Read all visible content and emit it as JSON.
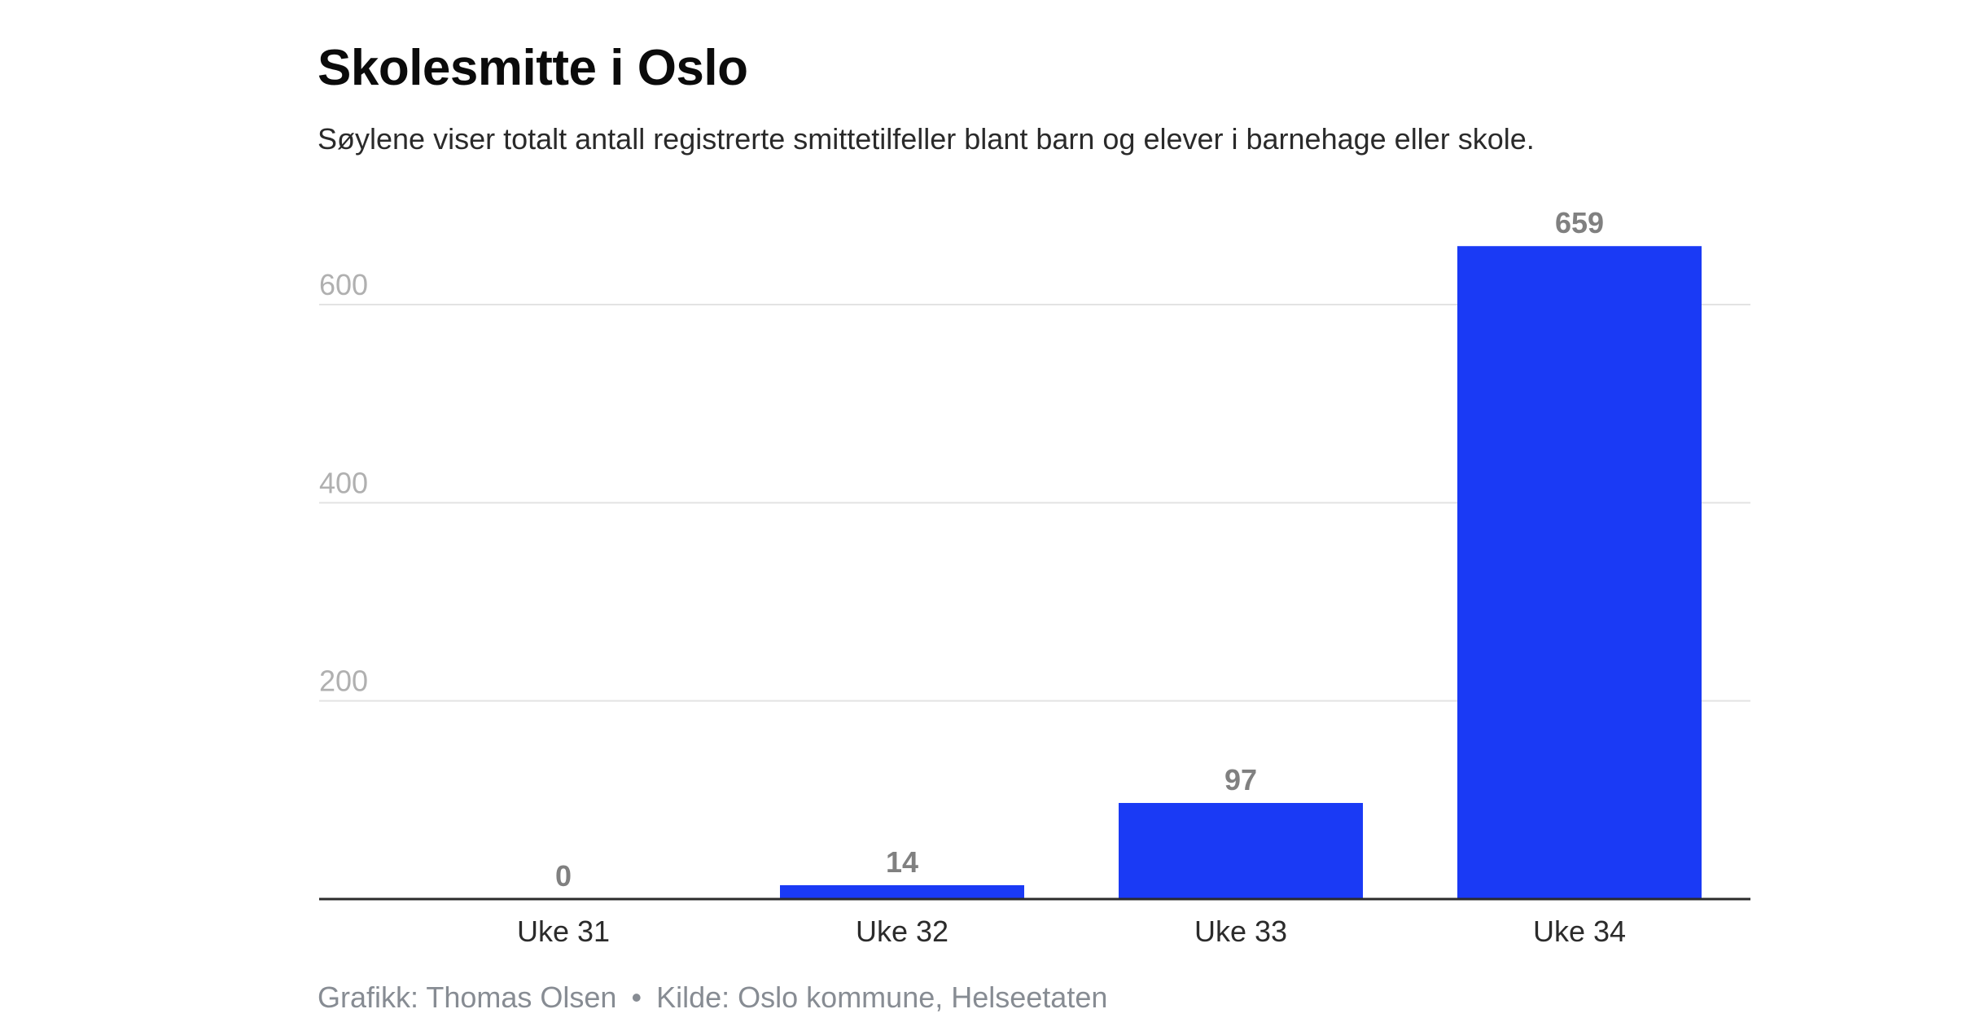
{
  "chart_data": {
    "type": "bar",
    "title": "Skolesmitte i Oslo",
    "subtitle": "Søylene viser totalt antall registrerte smittetilfeller blant barn og elever i barnehage eller skole.",
    "categories": [
      "Uke 31",
      "Uke 32",
      "Uke 33",
      "Uke 34"
    ],
    "values": [
      0,
      14,
      97,
      659
    ],
    "data_labels": [
      "0",
      "14",
      "97",
      "659"
    ],
    "y_ticks": [
      200,
      400,
      600
    ],
    "y_tick_labels": [
      "200",
      "400",
      "600"
    ],
    "ylim": [
      0,
      690
    ],
    "grid": true,
    "legend": "none",
    "xlabel": "",
    "ylabel": "",
    "colors": {
      "bar": "#1a3af5",
      "grid": "#e3e3e3",
      "axis": "#2b2b2b",
      "tick_label": "#b0b0b0",
      "data_label": "#808080",
      "category_label": "#2b2b2b"
    }
  },
  "footer": {
    "credit": "Grafikk: Thomas Olsen",
    "separator": "•",
    "source": "Kilde: Oslo kommune, Helseetaten"
  }
}
